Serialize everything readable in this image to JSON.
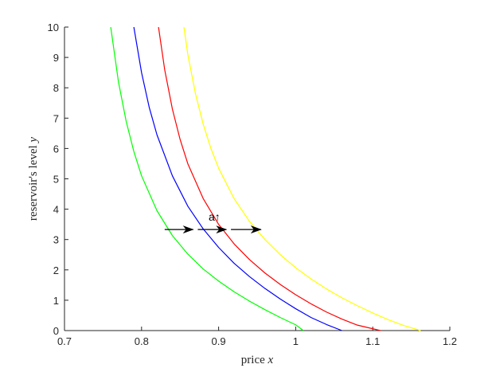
{
  "chart_data": {
    "type": "line",
    "xlabel": "price x",
    "ylabel": "reservoir's level y",
    "xlim": [
      0.7,
      1.2
    ],
    "ylim": [
      0,
      10
    ],
    "xticks": [
      "0.7",
      "0.8",
      "0.9",
      "1",
      "1.1",
      "1.2"
    ],
    "yticks": [
      "0",
      "1",
      "2",
      "3",
      "4",
      "5",
      "6",
      "7",
      "8",
      "9",
      "10"
    ],
    "grid": false,
    "series": [
      {
        "color": "#00ff00",
        "x": [
          0.76,
          0.77,
          0.78,
          0.79,
          0.8,
          0.82,
          0.84,
          0.86,
          0.88,
          0.9,
          0.92,
          0.94,
          0.96,
          0.98,
          1.0,
          1.01
        ],
        "y": [
          10,
          8.2,
          6.9,
          5.9,
          5.1,
          3.95,
          3.13,
          2.52,
          2.03,
          1.63,
          1.28,
          0.97,
          0.69,
          0.43,
          0.19,
          0.0
        ]
      },
      {
        "color": "#0000ff",
        "x": [
          0.79,
          0.8,
          0.81,
          0.82,
          0.84,
          0.86,
          0.88,
          0.9,
          0.92,
          0.94,
          0.96,
          0.98,
          1.0,
          1.02,
          1.04,
          1.06
        ],
        "y": [
          10,
          8.5,
          7.35,
          6.45,
          5.1,
          4.1,
          3.35,
          2.74,
          2.22,
          1.78,
          1.39,
          1.04,
          0.72,
          0.43,
          0.2,
          0.0
        ]
      },
      {
        "color": "#ff0000",
        "x": [
          0.822,
          0.83,
          0.84,
          0.85,
          0.86,
          0.88,
          0.9,
          0.92,
          0.94,
          0.96,
          0.98,
          1.0,
          1.02,
          1.04,
          1.06,
          1.08,
          1.11
        ],
        "y": [
          10,
          8.6,
          7.3,
          6.3,
          5.5,
          4.35,
          3.5,
          2.86,
          2.34,
          1.9,
          1.52,
          1.18,
          0.88,
          0.61,
          0.38,
          0.18,
          0.0
        ]
      },
      {
        "color": "#ffff00",
        "x": [
          0.855,
          0.86,
          0.87,
          0.88,
          0.89,
          0.9,
          0.92,
          0.94,
          0.96,
          0.98,
          1.0,
          1.02,
          1.04,
          1.06,
          1.08,
          1.1,
          1.12,
          1.14,
          1.162
        ],
        "y": [
          10,
          9.1,
          7.8,
          6.8,
          6.0,
          5.35,
          4.35,
          3.6,
          3.0,
          2.5,
          2.07,
          1.7,
          1.37,
          1.08,
          0.82,
          0.58,
          0.36,
          0.17,
          0.0
        ]
      }
    ],
    "annotations": [
      {
        "type": "arrow",
        "from": [
          0.83,
          3.33
        ],
        "to": [
          0.867,
          3.33
        ]
      },
      {
        "type": "arrow",
        "from": [
          0.873,
          3.33
        ],
        "to": [
          0.91,
          3.33
        ]
      },
      {
        "type": "arrow",
        "from": [
          0.916,
          3.33
        ],
        "to": [
          0.955,
          3.33
        ]
      },
      {
        "type": "text",
        "text": "a↑",
        "x": 0.887,
        "y": 3.62
      }
    ]
  }
}
